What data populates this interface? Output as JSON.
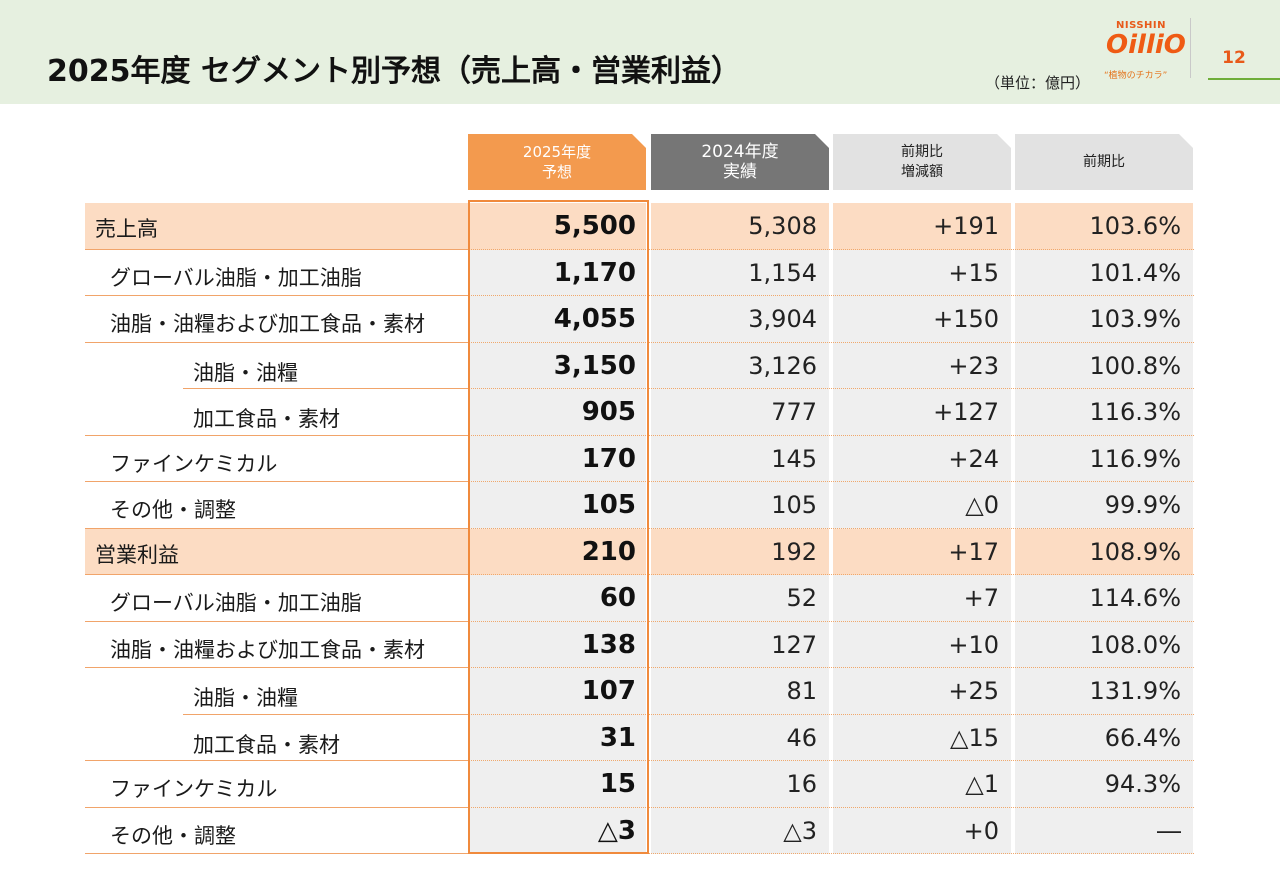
{
  "header": {
    "title": "2025年度 セグメント別予想（売上高・営業利益）",
    "unit": "（単位：億円）",
    "logo": {
      "top": "NISSHIN",
      "brand": "OilliO",
      "tagline": "“植物のチカラ”"
    },
    "page_number": "12"
  },
  "columns": [
    "2025年度\n予想",
    "2024年度\n実績",
    "前期比\n増減額",
    "前期比"
  ],
  "rows": [
    {
      "label": "売上高",
      "level": 0,
      "type": "total",
      "values": [
        "5,500",
        "5,308",
        "+191",
        "103.6%"
      ]
    },
    {
      "label": "グローバル油脂・加工油脂",
      "level": 1,
      "type": "detail",
      "values": [
        "1,170",
        "1,154",
        "+15",
        "101.4%"
      ]
    },
    {
      "label": "油脂・油糧および加工食品・素材",
      "level": 1,
      "type": "detail",
      "values": [
        "4,055",
        "3,904",
        "+150",
        "103.9%"
      ]
    },
    {
      "label": "油脂・油糧",
      "level": 2,
      "type": "detail",
      "values": [
        "3,150",
        "3,126",
        "+23",
        "100.8%"
      ]
    },
    {
      "label": "加工食品・素材",
      "level": 2,
      "type": "detail",
      "values": [
        "905",
        "777",
        "+127",
        "116.3%"
      ]
    },
    {
      "label": "ファインケミカル",
      "level": 1,
      "type": "detail",
      "values": [
        "170",
        "145",
        "+24",
        "116.9%"
      ]
    },
    {
      "label": "その他・調整",
      "level": 1,
      "type": "detail",
      "values": [
        "105",
        "105",
        "△0",
        "99.9%"
      ]
    },
    {
      "label": "営業利益",
      "level": 0,
      "type": "total",
      "values": [
        "210",
        "192",
        "+17",
        "108.9%"
      ]
    },
    {
      "label": "グローバル油脂・加工油脂",
      "level": 1,
      "type": "detail",
      "values": [
        "60",
        "52",
        "+7",
        "114.6%"
      ]
    },
    {
      "label": "油脂・油糧および加工食品・素材",
      "level": 1,
      "type": "detail",
      "values": [
        "138",
        "127",
        "+10",
        "108.0%"
      ]
    },
    {
      "label": "油脂・油糧",
      "level": 2,
      "type": "detail",
      "values": [
        "107",
        "81",
        "+25",
        "131.9%"
      ]
    },
    {
      "label": "加工食品・素材",
      "level": 2,
      "type": "detail",
      "values": [
        "31",
        "46",
        "△15",
        "66.4%"
      ]
    },
    {
      "label": "ファインケミカル",
      "level": 1,
      "type": "detail",
      "values": [
        "15",
        "16",
        "△1",
        "94.3%"
      ]
    },
    {
      "label": "その他・調整",
      "level": 1,
      "type": "detail",
      "values": [
        "△3",
        "△3",
        "+0",
        "―"
      ]
    }
  ],
  "colors": {
    "header_bg": "#e6f0e0",
    "accent_orange": "#f39a4e",
    "total_row_bg": "#fcdcc3",
    "prev_year_header": "#767676",
    "brand_orange": "#ef5b14"
  }
}
